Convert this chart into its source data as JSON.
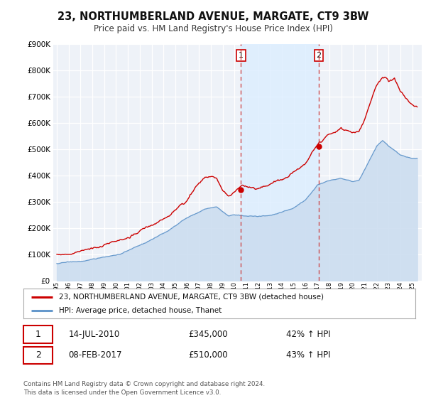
{
  "title": "23, NORTHUMBERLAND AVENUE, MARGATE, CT9 3BW",
  "subtitle": "Price paid vs. HM Land Registry's House Price Index (HPI)",
  "property_label": "23, NORTHUMBERLAND AVENUE, MARGATE, CT9 3BW (detached house)",
  "hpi_label": "HPI: Average price, detached house, Thanet",
  "transaction1_date": "14-JUL-2010",
  "transaction1_price": "£345,000",
  "transaction1_hpi": "42% ↑ HPI",
  "transaction1_year": 2010.54,
  "transaction1_value": 345000,
  "transaction2_date": "08-FEB-2017",
  "transaction2_price": "£510,000",
  "transaction2_hpi": "43% ↑ HPI",
  "transaction2_year": 2017.11,
  "transaction2_value": 510000,
  "footnote": "Contains HM Land Registry data © Crown copyright and database right 2024.\nThis data is licensed under the Open Government Licence v3.0.",
  "property_color": "#cc0000",
  "hpi_fill_color": "#ccddf0",
  "hpi_line_color": "#6699cc",
  "shade_color": "#ddeeff",
  "background_color": "#eef2f8",
  "grid_color": "#ffffff",
  "ylim": [
    0,
    900000
  ],
  "xlim_start": 1994.7,
  "xlim_end": 2025.8,
  "yticks": [
    0,
    100000,
    200000,
    300000,
    400000,
    500000,
    600000,
    700000,
    800000,
    900000
  ]
}
